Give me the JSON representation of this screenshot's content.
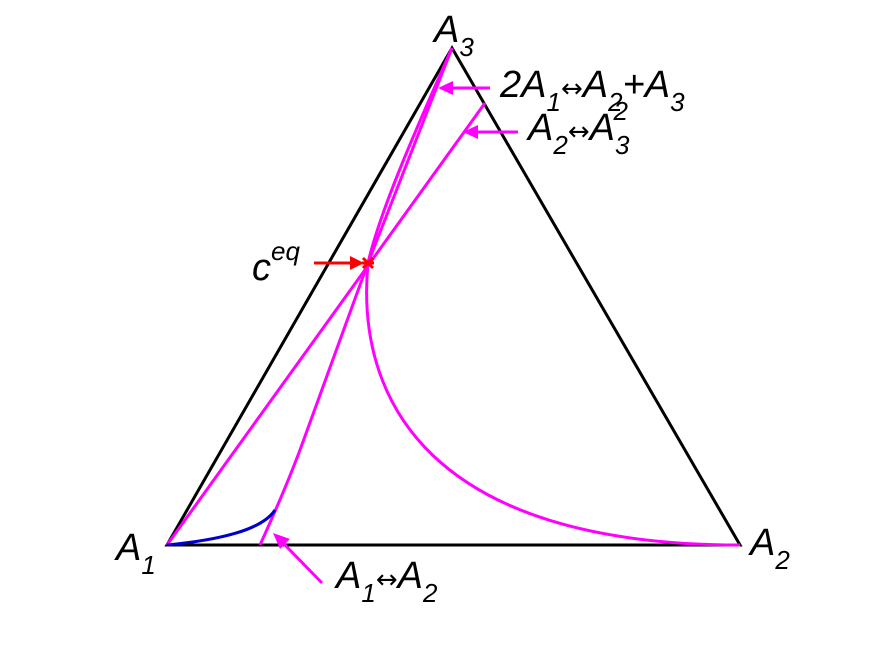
{
  "colors": {
    "triangle": "#000000",
    "curves": "#ff00ff",
    "trajectory": "#0000cc",
    "equilibrium_marker": "#ff0000",
    "background": "#ffffff"
  },
  "vertices": {
    "a1": {
      "letter": "A",
      "index": "1"
    },
    "a2": {
      "letter": "A",
      "index": "2"
    },
    "a3": {
      "letter": "A",
      "index": "3"
    }
  },
  "equilibrium": {
    "symbol": "c",
    "superscript": "eq"
  },
  "reactions": {
    "r1": {
      "text": "2A",
      "i1": "1",
      "arrow": "↔",
      "mid": "A",
      "i2": "2",
      "plus": "+A",
      "i3": "3"
    },
    "r2": {
      "text": "A",
      "i1": "2",
      "arrow": "↔",
      "mid": "A",
      "i2": "3",
      "sup": "2"
    },
    "r3": {
      "text": "A",
      "i1": "1",
      "arrow": "↔",
      "mid": "A",
      "i2": "2"
    }
  }
}
